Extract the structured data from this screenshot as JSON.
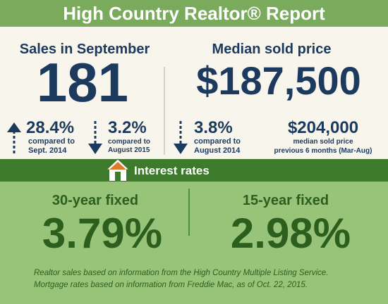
{
  "header": {
    "title": "High Country Realtor® Report"
  },
  "sales": {
    "label": "Sales in September",
    "value": "181",
    "changes": [
      {
        "value": "28.4%",
        "lines": [
          "compared to",
          "Sept. 2014"
        ]
      },
      {
        "value": "3.2%",
        "lines": [
          "compared to",
          "August 2015"
        ]
      }
    ]
  },
  "median": {
    "label": "Median sold price",
    "value": "$187,500",
    "changes": [
      {
        "value": "3.8%",
        "lines": [
          "compared to",
          "August 2014"
        ]
      },
      {
        "value": "$204,000",
        "lines": [
          "median sold price",
          "previous 6 months (Mar-Aug)"
        ]
      }
    ]
  },
  "rates": {
    "title": "Interest rates",
    "items": [
      {
        "label": "30-year fixed",
        "value": "3.79%"
      },
      {
        "label": "15-year fixed",
        "value": "2.98%"
      }
    ]
  },
  "footer": [
    "Realtor sales based on information from the High Country Multiple Listing Service.",
    "Mortgage rates based on information from Freddie Mac, as of Oct. 22, 2015."
  ]
}
